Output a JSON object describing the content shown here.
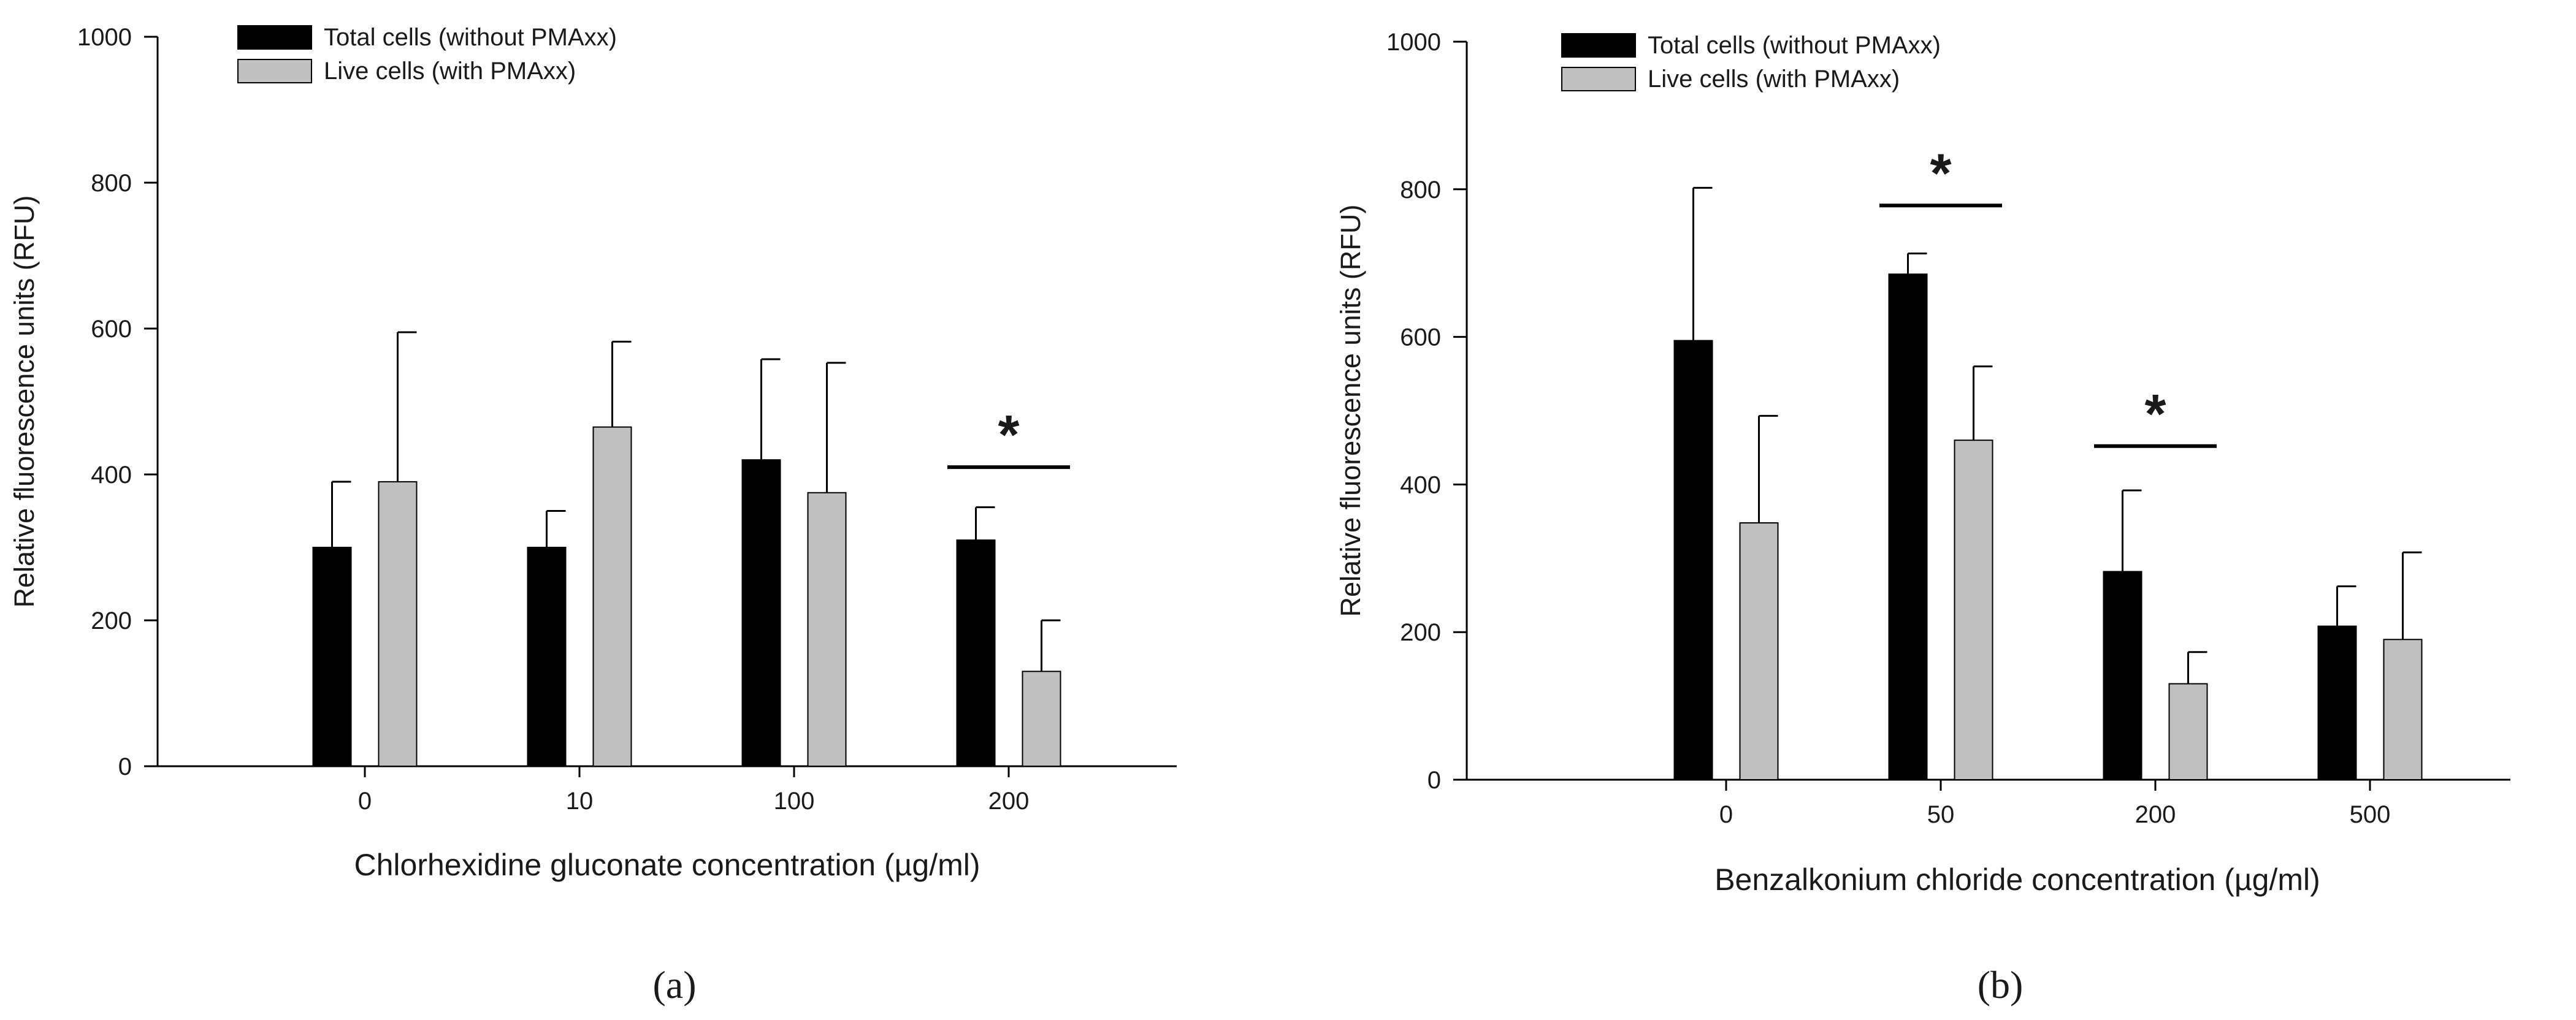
{
  "chart_data": [
    {
      "type": "bar",
      "panel_label": "(a)",
      "xlabel": "Chlorhexidine gluconate concentration (µg/ml)",
      "ylabel": "Relative fluorescence units (RFU)",
      "ylim": [
        0,
        1000
      ],
      "yticks": [
        "0",
        "200",
        "400",
        "600",
        "800",
        "1000"
      ],
      "categories": [
        "0",
        "10",
        "100",
        "200"
      ],
      "series": [
        {
          "name": "Total cells (without PMAxx)",
          "color": "#000000",
          "values": [
            300,
            300,
            420,
            310
          ],
          "errors": [
            90,
            50,
            138,
            45
          ]
        },
        {
          "name": "Live cells (with PMAxx)",
          "color": "#c0c0c0",
          "values": [
            390,
            465,
            375,
            130
          ],
          "errors": [
            205,
            117,
            178,
            70
          ]
        }
      ],
      "annotations": [
        {
          "label": "*",
          "category_index": 3,
          "y": 410
        }
      ],
      "legend": "top-left",
      "grid": false
    },
    {
      "type": "bar",
      "panel_label": "(b)",
      "xlabel": "Benzalkonium chloride concentration (µg/ml)",
      "ylabel": "Relative fluorescence units (RFU)",
      "ylim": [
        0,
        1000
      ],
      "yticks": [
        "0",
        "200",
        "400",
        "600",
        "800",
        "1000"
      ],
      "categories": [
        "0",
        "50",
        "200",
        "500"
      ],
      "series": [
        {
          "name": "Total cells (without PMAxx)",
          "color": "#000000",
          "values": [
            595,
            685,
            282,
            208
          ],
          "errors": [
            207,
            28,
            110,
            54
          ]
        },
        {
          "name": "Live cells (with PMAxx)",
          "color": "#c0c0c0",
          "values": [
            348,
            460,
            130,
            190
          ],
          "errors": [
            145,
            100,
            43,
            118
          ]
        }
      ],
      "annotations": [
        {
          "label": "*",
          "category_index": 1,
          "y": 778
        },
        {
          "label": "*",
          "category_index": 2,
          "y": 452
        }
      ],
      "legend": "top-left",
      "grid": false
    }
  ]
}
